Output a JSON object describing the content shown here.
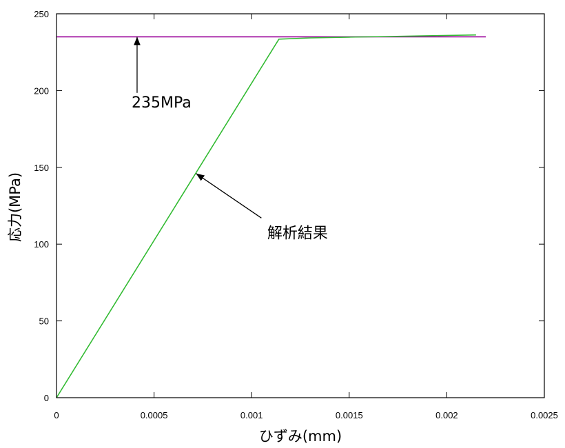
{
  "chart_data": {
    "type": "line",
    "xlabel": "ひずみ(mm)",
    "ylabel": "応力(MPa)",
    "xlim": [
      0,
      0.0025
    ],
    "ylim": [
      0,
      250
    ],
    "xticks": [
      0,
      0.0005,
      0.001,
      0.0015,
      0.002,
      0.0025
    ],
    "xtick_labels": [
      "0",
      "0.0005",
      "0.001",
      "0.0015",
      "0.002",
      "0.0025"
    ],
    "yticks": [
      0,
      50,
      100,
      150,
      200,
      250
    ],
    "ytick_labels": [
      "0",
      "50",
      "100",
      "150",
      "200",
      "250"
    ],
    "grid": false,
    "series": [
      {
        "color": "#33bb33",
        "x": [
          0,
          0.00114,
          0.0013,
          0.0015,
          0.0017,
          0.0019,
          0.00215
        ],
        "y": [
          0,
          233.5,
          234.3,
          234.8,
          235.2,
          235.7,
          236.2
        ]
      },
      {
        "color": "#990099",
        "x": [
          0,
          0.0022
        ],
        "y": [
          235,
          235
        ]
      }
    ],
    "annotations": [
      {
        "text": "235MPa",
        "text_x": 0.000385,
        "text_y": 189,
        "arrow_from": [
          0.000413,
          198.5
        ],
        "arrow_to": [
          0.000413,
          235
        ]
      },
      {
        "text": "解析結果",
        "text_x": 0.00108,
        "text_y": 104,
        "arrow_from": [
          0.00105,
          117
        ],
        "arrow_to": [
          0.000715,
          146
        ]
      }
    ]
  }
}
